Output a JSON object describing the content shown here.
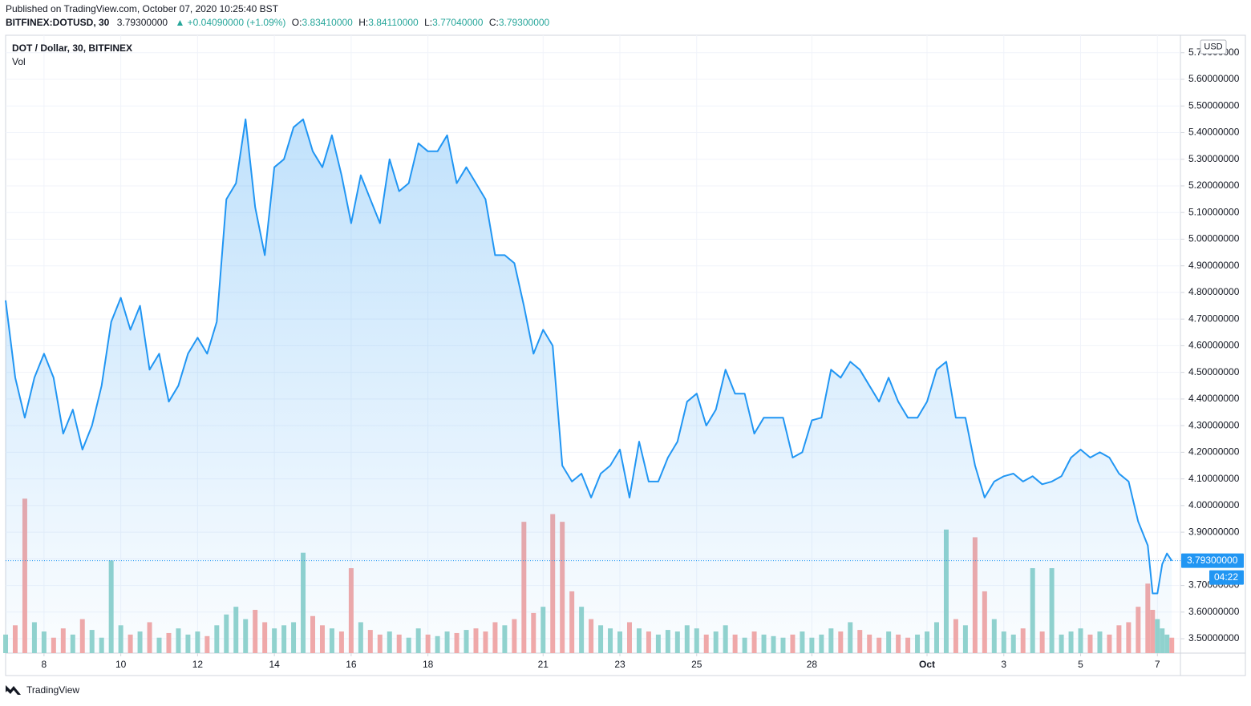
{
  "header": {
    "published": "Published on TradingView.com, October 07, 2020 10:25:40 BST",
    "symbol": "BITFINEX:DOTUSD, 30",
    "price": "3.79300000",
    "change": "▲ +0.04090000 (+1.09%)",
    "ohlc": [
      {
        "label": "O:",
        "value": "3.83410000"
      },
      {
        "label": "H:",
        "value": "3.84110000"
      },
      {
        "label": "L:",
        "value": "3.77040000"
      },
      {
        "label": "C:",
        "value": "3.79300000"
      }
    ]
  },
  "footer": {
    "brand": "TradingView"
  },
  "chart_data": {
    "type": "line",
    "currency": "USD",
    "x": [
      7,
      7.25,
      7.5,
      7.75,
      8,
      8.25,
      8.5,
      8.75,
      9,
      9.25,
      9.5,
      9.75,
      10,
      10.25,
      10.5,
      10.75,
      11,
      11.25,
      11.5,
      11.75,
      12,
      12.25,
      12.5,
      12.75,
      13,
      13.25,
      13.5,
      13.75,
      14,
      14.25,
      14.5,
      14.75,
      15,
      15.25,
      15.5,
      15.75,
      16,
      16.25,
      16.5,
      16.75,
      17,
      17.25,
      17.5,
      17.75,
      18,
      18.25,
      18.5,
      18.75,
      19,
      19.25,
      19.5,
      19.75,
      20,
      20.25,
      20.5,
      20.75,
      21,
      21.25,
      21.5,
      21.75,
      22,
      22.25,
      22.5,
      22.75,
      23,
      23.25,
      23.5,
      23.75,
      24,
      24.25,
      24.5,
      24.75,
      25,
      25.25,
      25.5,
      25.75,
      26,
      26.25,
      26.5,
      26.75,
      27,
      27.25,
      27.5,
      27.75,
      28,
      28.25,
      28.5,
      28.75,
      29,
      29.25,
      29.5,
      29.75,
      30,
      30.25,
      30.5,
      30.75,
      31,
      31.25,
      31.5,
      31.75,
      32,
      32.25,
      32.5,
      32.75,
      33,
      33.25,
      33.5,
      33.75,
      34,
      34.25,
      34.5,
      34.75,
      35,
      35.25,
      35.5,
      35.75,
      36,
      36.25,
      36.5,
      36.75,
      36.875,
      37,
      37.125,
      37.25,
      37.375
    ],
    "series": [
      {
        "name": "DOT / Dollar, 30, BITFINEX",
        "color": "#2196f3",
        "values": [
          4.77,
          4.48,
          4.33,
          4.48,
          4.57,
          4.48,
          4.27,
          4.36,
          4.21,
          4.3,
          4.45,
          4.69,
          4.78,
          4.66,
          4.75,
          4.51,
          4.57,
          4.39,
          4.45,
          4.57,
          4.63,
          4.57,
          4.69,
          5.15,
          5.21,
          5.45,
          5.12,
          4.94,
          5.27,
          5.3,
          5.42,
          5.45,
          5.33,
          5.27,
          5.39,
          5.24,
          5.06,
          5.24,
          5.15,
          5.06,
          5.3,
          5.18,
          5.21,
          5.36,
          5.33,
          5.33,
          5.39,
          5.21,
          5.27,
          5.21,
          5.15,
          4.94,
          4.94,
          4.91,
          4.75,
          4.57,
          4.66,
          4.6,
          4.15,
          4.09,
          4.12,
          4.03,
          4.12,
          4.15,
          4.21,
          4.03,
          4.24,
          4.09,
          4.09,
          4.18,
          4.24,
          4.39,
          4.42,
          4.3,
          4.36,
          4.51,
          4.42,
          4.42,
          4.27,
          4.33,
          4.33,
          4.33,
          4.18,
          4.2,
          4.32,
          4.33,
          4.51,
          4.48,
          4.54,
          4.51,
          4.45,
          4.39,
          4.48,
          4.39,
          4.33,
          4.33,
          4.39,
          4.51,
          4.54,
          4.33,
          4.33,
          4.15,
          4.03,
          4.09,
          4.11,
          4.12,
          4.09,
          4.11,
          4.08,
          4.09,
          4.11,
          4.18,
          4.21,
          4.18,
          4.2,
          4.18,
          4.12,
          4.09,
          3.94,
          3.85,
          3.67,
          3.67,
          3.78,
          3.82,
          3.793
        ]
      },
      {
        "name": "Vol",
        "type": "bar",
        "axis": "y2",
        "up_color": "#93d3cd",
        "down_color": "#f4a9a7",
        "values": [
          12,
          18,
          100,
          20,
          14,
          10,
          16,
          12,
          22,
          15,
          10,
          60,
          18,
          12,
          14,
          20,
          10,
          13,
          16,
          12,
          14,
          11,
          18,
          25,
          30,
          22,
          28,
          20,
          16,
          18,
          20,
          65,
          24,
          18,
          16,
          14,
          55,
          20,
          15,
          12,
          14,
          12,
          10,
          16,
          12,
          11,
          14,
          13,
          15,
          16,
          14,
          20,
          18,
          22,
          85,
          26,
          30,
          90,
          85,
          40,
          30,
          22,
          18,
          16,
          14,
          20,
          16,
          14,
          12,
          15,
          14,
          18,
          16,
          12,
          14,
          18,
          12,
          10,
          14,
          12,
          11,
          10,
          12,
          14,
          10,
          12,
          16,
          14,
          20,
          15,
          12,
          10,
          14,
          12,
          10,
          12,
          14,
          20,
          80,
          22,
          18,
          75,
          40,
          22,
          14,
          12,
          16,
          55,
          14,
          55,
          12,
          14,
          16,
          12,
          14,
          12,
          18,
          20,
          30,
          45,
          28,
          22,
          16,
          12,
          10
        ]
      }
    ],
    "last_price": {
      "value": 3.793,
      "label": "3.79300000"
    },
    "countdown": "04:22",
    "xlim": [
      7,
      37.6
    ],
    "xticks": [
      8,
      10,
      12,
      14,
      16,
      18,
      21,
      23,
      25,
      28,
      {
        "value": 31,
        "label": "Oct"
      },
      {
        "value": 33,
        "label": "3"
      },
      {
        "value": 35,
        "label": "5"
      },
      {
        "value": 37,
        "label": "7"
      }
    ],
    "ylim": [
      3.446,
      5.7655
    ],
    "yticks": [
      {
        "value": 3.5,
        "label": "3.50000000"
      },
      {
        "value": 3.6,
        "label": "3.60000000"
      },
      {
        "value": 3.7,
        "label": "3.70000000"
      },
      {
        "value": 3.8,
        "label": "3.80000000"
      },
      {
        "value": 3.9,
        "label": "3.90000000"
      },
      {
        "value": 4.0,
        "label": "4.00000000"
      },
      {
        "value": 4.1,
        "label": "4.10000000"
      },
      {
        "value": 4.2,
        "label": "4.20000000"
      },
      {
        "value": 4.3,
        "label": "4.30000000"
      },
      {
        "value": 4.4,
        "label": "4.40000000"
      },
      {
        "value": 4.5,
        "label": "4.50000000"
      },
      {
        "value": 4.6,
        "label": "4.60000000"
      },
      {
        "value": 4.7,
        "label": "4.70000000"
      },
      {
        "value": 4.8,
        "label": "4.80000000"
      },
      {
        "value": 4.9,
        "label": "4.90000000"
      },
      {
        "value": 5.0,
        "label": "5.00000000"
      },
      {
        "value": 5.1,
        "label": "5.10000000"
      },
      {
        "value": 5.2,
        "label": "5.20000000"
      },
      {
        "value": 5.3,
        "label": "5.30000000"
      },
      {
        "value": 5.4,
        "label": "5.40000000"
      },
      {
        "value": 5.5,
        "label": "5.50000000"
      },
      {
        "value": 5.6,
        "label": "5.60000000"
      },
      {
        "value": 5.7,
        "label": "5.70000000"
      }
    ],
    "y2lim": [
      0,
      400
    ],
    "grid": true
  }
}
